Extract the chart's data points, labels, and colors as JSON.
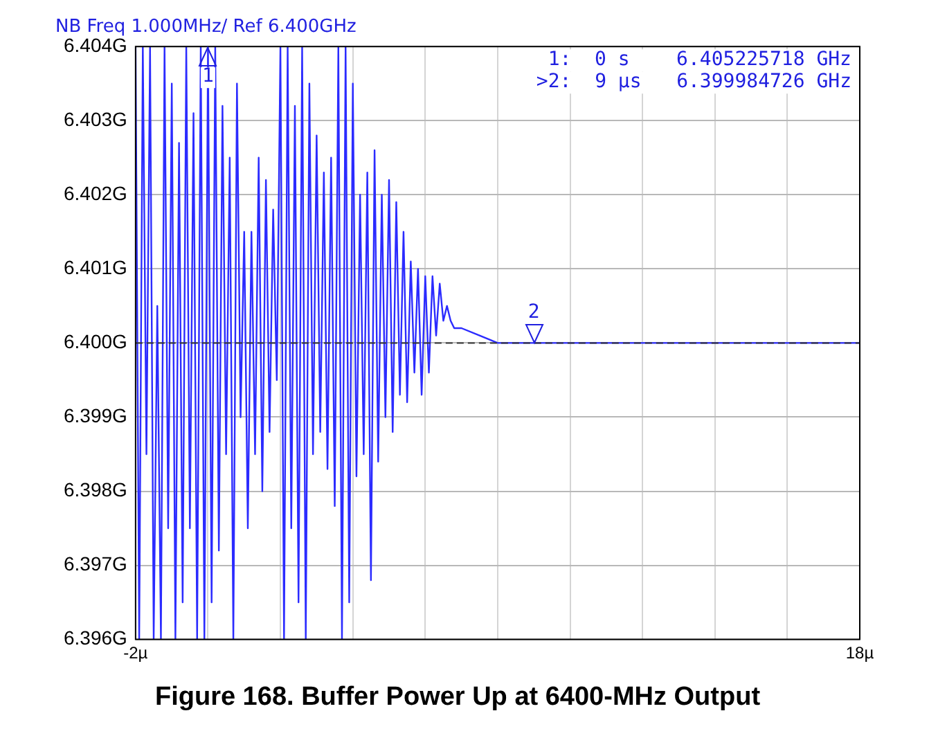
{
  "chart_data": {
    "type": "line",
    "title": "Figure 168. Buffer Power Up at 6400-MHz Output",
    "subtitle": "NB Freq 1.000MHz/ Ref 6.400GHz",
    "x": [
      -2.0,
      -1.9,
      -1.8,
      -1.7,
      -1.6,
      -1.5,
      -1.4,
      -1.3,
      -1.2,
      -1.1,
      -1.0,
      -0.9,
      -0.8,
      -0.7,
      -0.6,
      -0.5,
      -0.4,
      -0.3,
      -0.2,
      -0.1,
      0.0,
      0.1,
      0.2,
      0.3,
      0.4,
      0.5,
      0.6,
      0.7,
      0.8,
      0.9,
      1.0,
      1.1,
      1.2,
      1.3,
      1.4,
      1.5,
      1.6,
      1.7,
      1.8,
      1.9,
      2.0,
      2.1,
      2.2,
      2.3,
      2.4,
      2.5,
      2.6,
      2.7,
      2.8,
      2.9,
      3.0,
      3.1,
      3.2,
      3.3,
      3.4,
      3.5,
      3.6,
      3.7,
      3.8,
      3.9,
      4.0,
      4.1,
      4.2,
      4.3,
      4.4,
      4.5,
      4.6,
      4.7,
      4.8,
      4.9,
      5.0,
      5.1,
      5.2,
      5.3,
      5.4,
      5.5,
      5.6,
      5.7,
      5.8,
      5.9,
      6.0,
      6.1,
      6.2,
      6.3,
      6.4,
      6.5,
      6.6,
      6.7,
      6.8,
      7.0,
      7.5,
      8.0,
      8.5,
      9.0,
      10.0,
      11.0,
      12.0,
      13.0,
      14.0,
      15.0,
      16.0,
      17.0,
      18.0
    ],
    "series": [
      {
        "color": "#2b2bff",
        "values": [
          6.404,
          6.396,
          6.404,
          6.3985,
          6.404,
          6.396,
          6.4005,
          6.396,
          6.404,
          6.3975,
          6.4035,
          6.396,
          6.4027,
          6.3965,
          6.404,
          6.3975,
          6.4031,
          6.396,
          6.404,
          6.396,
          6.404,
          6.3965,
          6.404,
          6.3972,
          6.4032,
          6.3985,
          6.4025,
          6.396,
          6.4035,
          6.399,
          6.4015,
          6.3975,
          6.4015,
          6.3985,
          6.4025,
          6.398,
          6.4022,
          6.3988,
          6.4018,
          6.3995,
          6.404,
          6.396,
          6.404,
          6.3975,
          6.4032,
          6.3965,
          6.404,
          6.396,
          6.4035,
          6.3985,
          6.4028,
          6.3988,
          6.4023,
          6.3983,
          6.4025,
          6.3978,
          6.404,
          6.396,
          6.404,
          6.3965,
          6.4035,
          6.3982,
          6.402,
          6.3985,
          6.4023,
          6.3968,
          6.4026,
          6.3984,
          6.402,
          6.399,
          6.4022,
          6.3988,
          6.4019,
          6.3993,
          6.4015,
          6.3992,
          6.4011,
          6.3996,
          6.401,
          6.3993,
          6.4009,
          6.3996,
          6.4009,
          6.4001,
          6.4008,
          6.4003,
          6.4005,
          6.4003,
          6.4002,
          6.4002,
          6.4001,
          6.4,
          6.4,
          6.4,
          6.4,
          6.4,
          6.4,
          6.4,
          6.4,
          6.4,
          6.4,
          6.4,
          6.4
        ]
      }
    ],
    "xlim": [
      -2,
      18
    ],
    "ylim": [
      6.396,
      6.404
    ],
    "xticks": [
      {
        "value": -2,
        "label": "-2µ"
      },
      {
        "value": 0,
        "label": null
      },
      {
        "value": 2,
        "label": null
      },
      {
        "value": 4,
        "label": null
      },
      {
        "value": 6,
        "label": null
      },
      {
        "value": 8,
        "label": null
      },
      {
        "value": 10,
        "label": null
      },
      {
        "value": 12,
        "label": null
      },
      {
        "value": 14,
        "label": null
      },
      {
        "value": 16,
        "label": null
      },
      {
        "value": 18,
        "label": "18µ"
      }
    ],
    "yticks": [
      {
        "value": 6.396,
        "label": "6.396G"
      },
      {
        "value": 6.397,
        "label": "6.397G"
      },
      {
        "value": 6.398,
        "label": "6.398G"
      },
      {
        "value": 6.399,
        "label": "6.399G"
      },
      {
        "value": 6.4,
        "label": "6.400G"
      },
      {
        "value": 6.401,
        "label": "6.401G"
      },
      {
        "value": 6.402,
        "label": "6.402G"
      },
      {
        "value": 6.403,
        "label": "6.403G"
      },
      {
        "value": 6.404,
        "label": "6.404G"
      }
    ],
    "ref_lines": [
      {
        "axis": "y",
        "value": 6.4,
        "color": "#333333",
        "line_style": "dashed"
      }
    ],
    "annotations": [
      "1:  0 s    6.405225718 GHz",
      ">2:  9 µs   6.399984726 GHz",
      {
        "text": "1",
        "x": 0,
        "y": 6.404
      },
      {
        "text": "2",
        "x": 9,
        "y": 6.4
      }
    ],
    "grid": true,
    "legend": false,
    "marker": "none",
    "line_style": "solid"
  }
}
